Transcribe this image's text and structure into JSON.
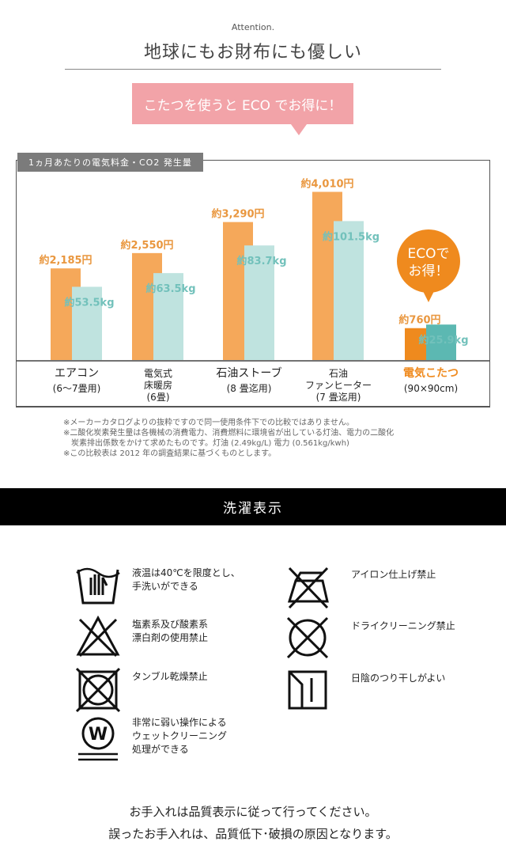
{
  "header": {
    "attention": "Attention.",
    "title": "地球にもお財布にも優しい",
    "callout": "こたつを使うと ECO でお得に！"
  },
  "chart_data": {
    "type": "bar",
    "title": "1ヵ月あたりの電気料金・CO2 発生量",
    "categories": [
      [
        "エアコン",
        "(6〜7畳用)"
      ],
      [
        "電気式",
        "床暖房",
        "(6畳)"
      ],
      [
        "石油ストーブ",
        "(8 畳迄用)"
      ],
      [
        "石油",
        "ファンヒーター",
        "(7 畳迄用)"
      ],
      [
        "電気こたつ",
        "(90×90cm)"
      ]
    ],
    "series": [
      {
        "unit": "円",
        "values": [
          2185,
          2550,
          3290,
          4010,
          760
        ],
        "labels": [
          "約2,185円",
          "約2,550円",
          "約3,290円",
          "約4,010円",
          "約760円"
        ],
        "color": "#f5a85a"
      },
      {
        "unit": "kg",
        "values": [
          53.5,
          63.5,
          83.7,
          101.5,
          25.9
        ],
        "labels": [
          "約53.5kg",
          "約63.5kg",
          "約83.7kg",
          "約101.5kg",
          "約25.9kg"
        ],
        "color": "#bfe3df"
      }
    ],
    "highlight": {
      "index": 4,
      "bar_colors": [
        "#ef8a1e",
        "#5cb8b2"
      ],
      "label_color": "#ef8a1e",
      "bubble": [
        "ECOで",
        "お得！"
      ]
    }
  },
  "notes": [
    "※メーカーカタログよりの抜粋ですので同一使用条件下での比較ではありません。",
    "※二酸化炭素発生量は各機械の消費電力、消費燃料に環境省が出している灯油、電力の二酸化",
    "　炭素排出係数をかけて求めたものです。灯油 (2.49kg/L) 電力 (0.561kg/kwh)",
    "※この比較表は 2012 年の調査結果に基づくものとします。"
  ],
  "care": {
    "title": "洗濯表示",
    "items": [
      {
        "icon": "hand-wash-icon",
        "text": [
          "液温は40℃を限度とし、",
          "手洗いができる"
        ]
      },
      {
        "icon": "no-bleach-icon",
        "text": [
          "塩素系及び酸素系",
          "漂白剤の使用禁止"
        ]
      },
      {
        "icon": "no-tumble-dry-icon",
        "text": [
          "タンブル乾燥禁止"
        ]
      },
      {
        "icon": "wet-clean-icon",
        "text": [
          "非常に弱い操作による",
          "ウェットクリーニング",
          "処理ができる"
        ]
      },
      {
        "icon": "no-iron-icon",
        "text": [
          "アイロン仕上げ禁止"
        ]
      },
      {
        "icon": "no-dry-clean-icon",
        "text": [
          "ドライクリーニング禁止"
        ]
      },
      {
        "icon": "shade-dry-icon",
        "text": [
          "日陰のつり干しがよい"
        ]
      }
    ]
  },
  "footer": [
    "お手入れは品質表示に従って行ってください。",
    "誤ったお手入れは、品質低下･破損の原因となります。"
  ]
}
